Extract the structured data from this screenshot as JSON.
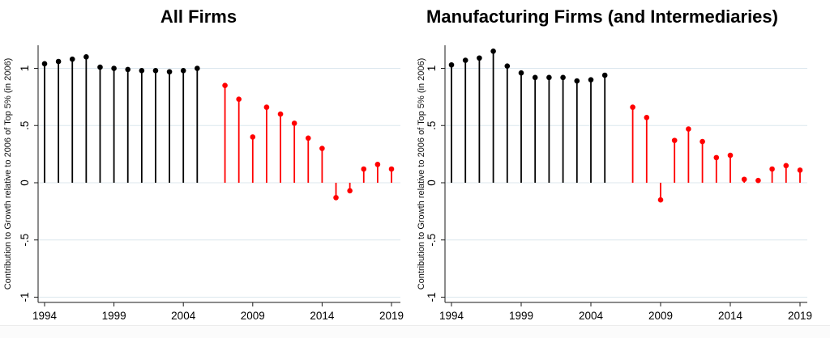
{
  "chart_data": [
    {
      "type": "lollipop",
      "title": "All Firms",
      "ylabel": "Contribution to Growth relative to 2006 of Top 5% (in 2006)",
      "xlabel": "",
      "xticks": [
        1994,
        1999,
        2004,
        2009,
        2014,
        2019
      ],
      "yticks": [
        {
          "value": 1,
          "label": "1"
        },
        {
          "value": 0.5,
          "label": ".5"
        },
        {
          "value": 0,
          "label": "0"
        },
        {
          "value": -0.5,
          "label": "-.5"
        },
        {
          "value": -1,
          "label": "-1"
        }
      ],
      "xlim": [
        1993.5,
        2019.7
      ],
      "ylim": [
        -1.05,
        1.2
      ],
      "grid": true,
      "legend": "none",
      "reference_year_gap": 2006,
      "series": [
        {
          "name": "pre-2006",
          "color": "#000000",
          "years": [
            1994,
            1995,
            1996,
            1997,
            1998,
            1999,
            2000,
            2001,
            2002,
            2003,
            2004,
            2005
          ],
          "values": [
            1.04,
            1.06,
            1.08,
            1.1,
            1.01,
            1.0,
            0.99,
            0.98,
            0.98,
            0.97,
            0.98,
            1.0
          ]
        },
        {
          "name": "post-2006",
          "color": "#ff0000",
          "years": [
            2007,
            2008,
            2009,
            2010,
            2011,
            2012,
            2013,
            2014,
            2015,
            2016,
            2017,
            2018,
            2019
          ],
          "values": [
            0.85,
            0.73,
            0.4,
            0.66,
            0.6,
            0.52,
            0.39,
            0.3,
            -0.13,
            -0.07,
            0.12,
            0.16,
            0.12
          ]
        }
      ]
    },
    {
      "type": "lollipop",
      "title": "Manufacturing Firms (and Intermediaries)",
      "ylabel": "Contribution to Growth relative to 2006 of Top 5% (in 2006)",
      "xlabel": "",
      "xticks": [
        1994,
        1999,
        2004,
        2009,
        2014,
        2019
      ],
      "yticks": [
        {
          "value": 1,
          "label": "1"
        },
        {
          "value": 0.5,
          "label": ".5"
        },
        {
          "value": 0,
          "label": "0"
        },
        {
          "value": -0.5,
          "label": "-.5"
        },
        {
          "value": -1,
          "label": "-1"
        }
      ],
      "xlim": [
        1993.5,
        2019.7
      ],
      "ylim": [
        -1.05,
        1.2
      ],
      "grid": true,
      "legend": "none",
      "reference_year_gap": 2006,
      "series": [
        {
          "name": "pre-2006",
          "color": "#000000",
          "years": [
            1994,
            1995,
            1996,
            1997,
            1998,
            1999,
            2000,
            2001,
            2002,
            2003,
            2004,
            2005
          ],
          "values": [
            1.03,
            1.07,
            1.09,
            1.15,
            1.02,
            0.96,
            0.92,
            0.92,
            0.92,
            0.89,
            0.9,
            0.94
          ]
        },
        {
          "name": "post-2006",
          "color": "#ff0000",
          "years": [
            2007,
            2008,
            2009,
            2010,
            2011,
            2012,
            2013,
            2014,
            2015,
            2016,
            2017,
            2018,
            2019
          ],
          "values": [
            0.66,
            0.57,
            -0.15,
            0.37,
            0.47,
            0.36,
            0.22,
            0.24,
            0.03,
            0.02,
            0.12,
            0.15,
            0.11
          ]
        }
      ]
    }
  ],
  "colors": {
    "pre_2006_stems": "#000000",
    "post_2006_stems": "#ff0000",
    "gridline": "#dce7ee",
    "axis": "#1a1a1a",
    "background": "#ffffff"
  }
}
